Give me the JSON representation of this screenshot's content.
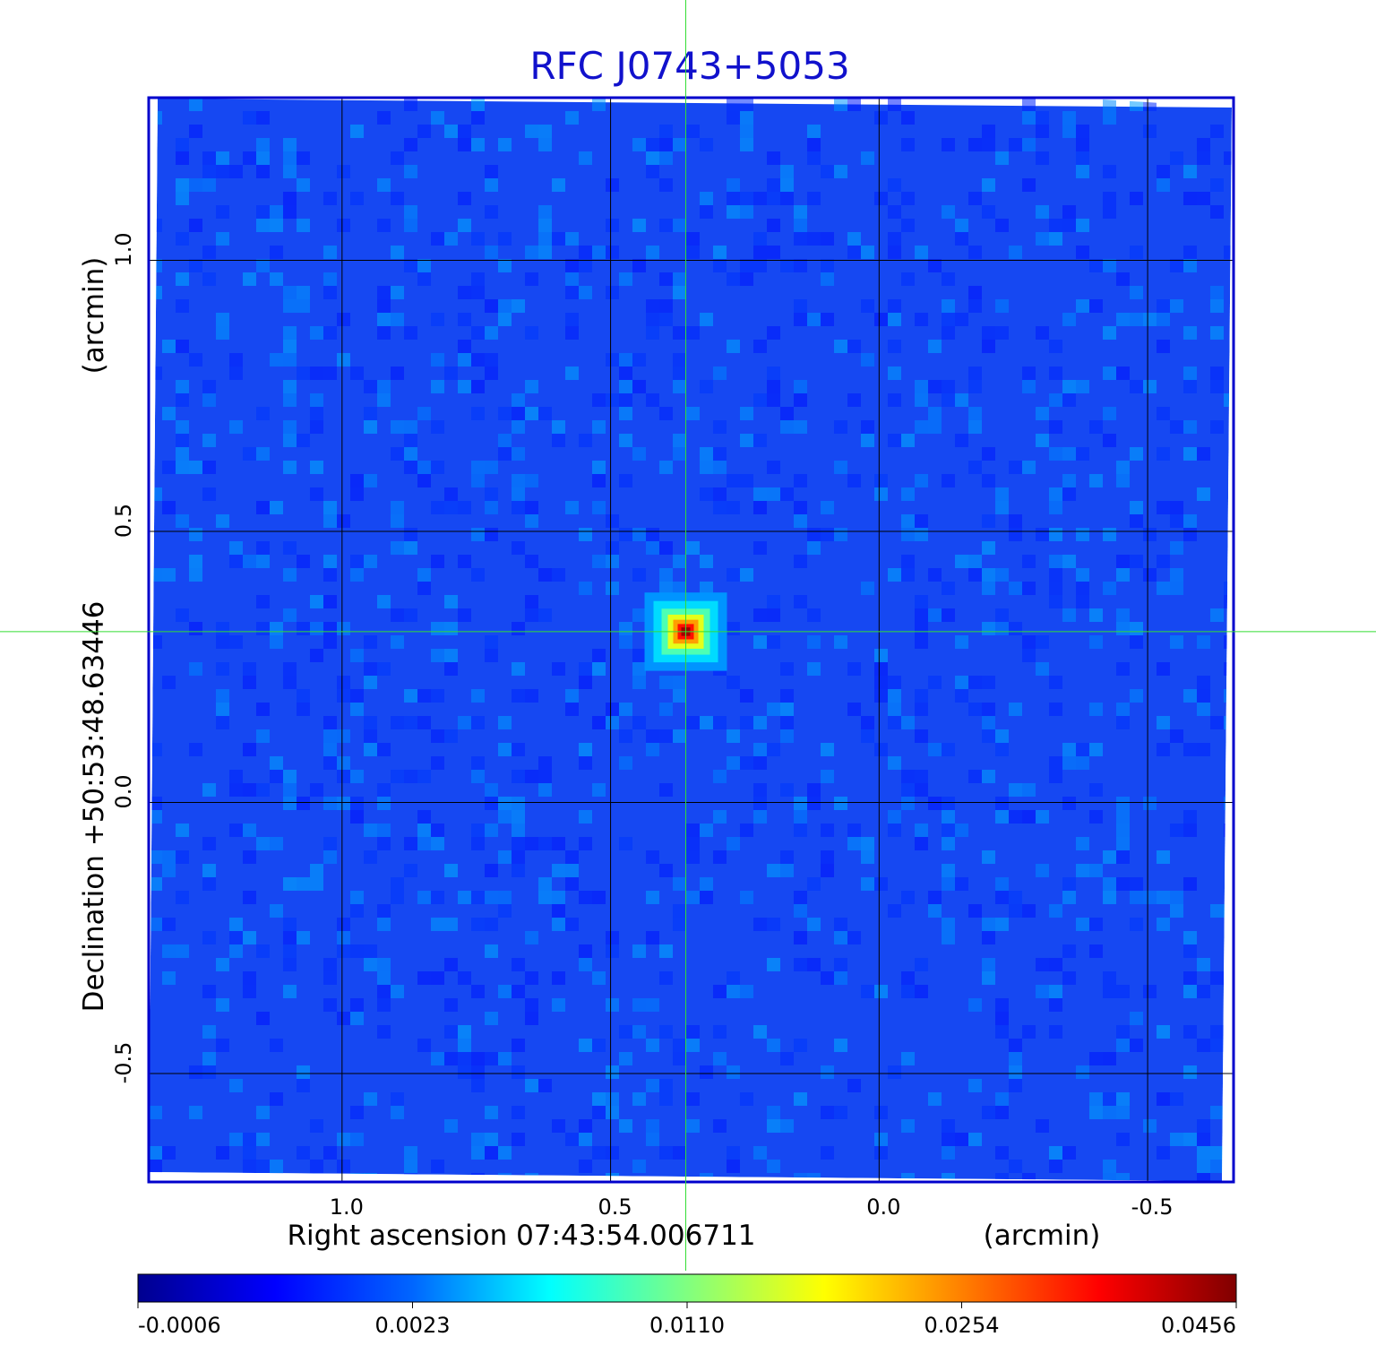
{
  "chart_data": {
    "type": "heatmap",
    "title": "RFC J0743+5053",
    "xlabel": "Right ascension  07:43:54.006711",
    "xunit": "(arcmin)",
    "ylabel": "Declination  +50:53:48.63446",
    "yunit": "(arcmin)",
    "xlim": [
      1.36,
      -0.66
    ],
    "ylim": [
      -0.7,
      1.3
    ],
    "xticks": [
      1.0,
      0.5,
      0.0,
      -0.5
    ],
    "xtick_labels": [
      "1.0",
      "0.5",
      "0.0",
      "-0.5"
    ],
    "yticks": [
      1.0,
      0.5,
      0.0,
      -0.5
    ],
    "ytick_labels": [
      "1.0",
      "0.5",
      "0.0",
      "-0.5"
    ],
    "grid": true,
    "colormap": "jet",
    "source": {
      "x": 0.36,
      "y": 0.315,
      "peak": 0.0456
    },
    "crosshair": {
      "x": 0.36,
      "y": 0.315,
      "color": "#33dd33"
    },
    "colorbar": {
      "tick_labels": [
        "-0.0006",
        "0.0023",
        "0.0110",
        "0.0254",
        "0.0456"
      ],
      "min": -0.0006,
      "max": 0.0456
    },
    "colors": {
      "title": "#1111cc",
      "frame": "#0000cc",
      "grid": "#000000"
    }
  }
}
